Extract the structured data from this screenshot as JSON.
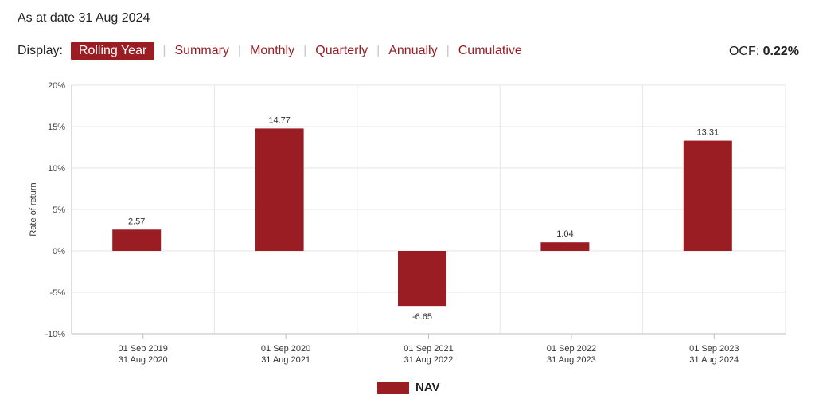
{
  "header": {
    "as_at": "As at date 31 Aug 2024",
    "display_label": "Display:",
    "tabs": [
      "Rolling Year",
      "Summary",
      "Monthly",
      "Quarterly",
      "Annually",
      "Cumulative"
    ],
    "active_tab": "Rolling Year",
    "ocf_label": "OCF:",
    "ocf_value": "0.22%"
  },
  "colors": {
    "accent": "#9a1d24",
    "bar": "#9a1d24",
    "grid": "#e6e6e6",
    "axis": "#bdbdbd"
  },
  "chart_data": {
    "type": "bar",
    "categories": [
      [
        "01 Sep 2019",
        "31 Aug 2020"
      ],
      [
        "01 Sep 2020",
        "31 Aug 2021"
      ],
      [
        "01 Sep 2021",
        "31 Aug 2022"
      ],
      [
        "01 Sep 2022",
        "31 Aug 2023"
      ],
      [
        "01 Sep 2023",
        "31 Aug 2024"
      ]
    ],
    "series": [
      {
        "name": "NAV",
        "values": [
          2.57,
          14.77,
          -6.65,
          1.04,
          13.31
        ]
      }
    ],
    "data_labels": [
      "2.57",
      "14.77",
      "-6.65",
      "1.04",
      "13.31"
    ],
    "ylabel": "Rate of return",
    "ylim": [
      -10,
      20
    ],
    "yticks": [
      20,
      15,
      10,
      5,
      0,
      -5,
      -10
    ],
    "ytick_labels": [
      "20%",
      "15%",
      "10%",
      "5%",
      "0%",
      "-5%",
      "-10%"
    ],
    "grid": true,
    "legend": "bottom-center"
  }
}
